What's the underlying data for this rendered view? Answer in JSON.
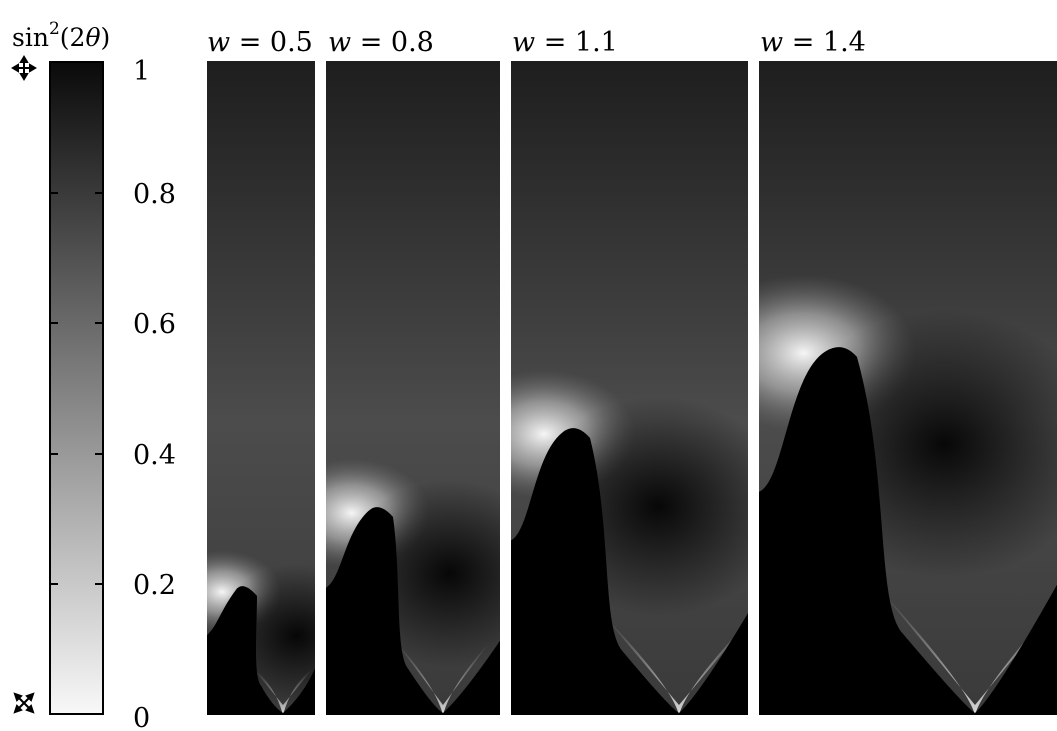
{
  "colorbar": {
    "label_base": "sin",
    "label_exp": "2",
    "label_arg_open": "(2",
    "label_theta": "θ",
    "label_arg_close": ")",
    "ticks": [
      "1",
      "0.8",
      "0.6",
      "0.4",
      "0.2",
      "0"
    ],
    "max_marker": "crossed-polarizers-parallel-icon",
    "min_marker": "crossed-polarizers-diagonal-icon"
  },
  "panels": [
    {
      "w_symbol": "w",
      "w_eq": " = 0.5",
      "w_value": 0.5
    },
    {
      "w_symbol": "w",
      "w_eq": " = 0.8",
      "w_value": 0.8
    },
    {
      "w_symbol": "w",
      "w_eq": " = 1.1",
      "w_value": 1.1
    },
    {
      "w_symbol": "w",
      "w_eq": " = 1.4",
      "w_value": 1.4
    }
  ]
}
